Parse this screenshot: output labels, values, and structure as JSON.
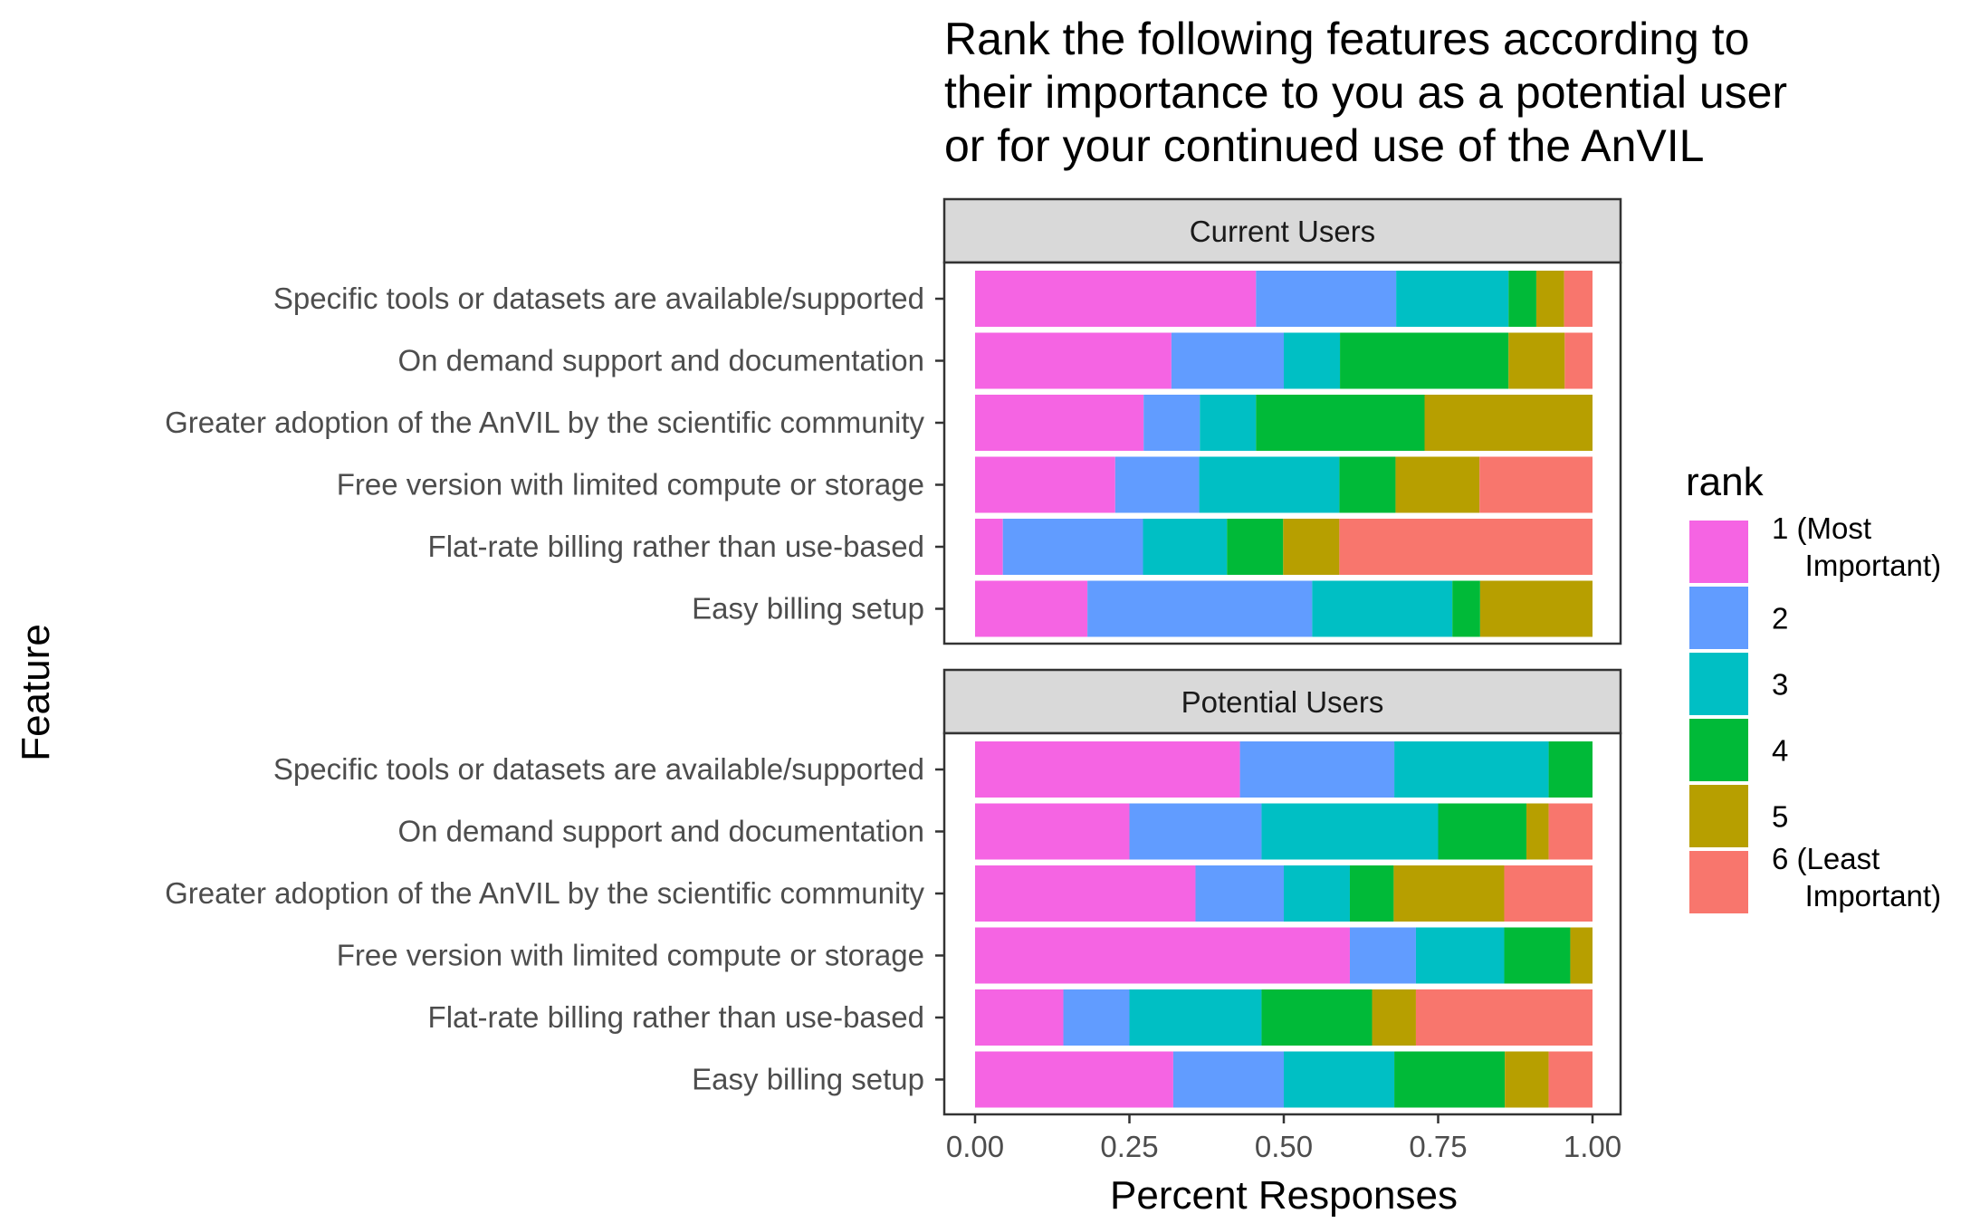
{
  "chart_data": {
    "type": "bar",
    "orientation": "horizontal",
    "stacked": true,
    "title": "Rank the following features according to\ntheir importance to you as a potential user\nor for your continued use of the AnVIL",
    "xlabel": "Percent Responses",
    "ylabel": "Feature",
    "xlim": [
      0,
      1
    ],
    "xticks": [
      "0.00",
      "0.25",
      "0.50",
      "0.75",
      "1.00"
    ],
    "xtick_values": [
      0,
      0.25,
      0.5,
      0.75,
      1.0
    ],
    "legend": {
      "title": "rank",
      "position": "right",
      "entries": [
        "1 (Most\n  Important)",
        "2",
        "3",
        "4",
        "5",
        "6 (Least\n  Important)"
      ]
    },
    "colors": [
      "#F564E3",
      "#619CFF",
      "#00BFC4",
      "#00BA38",
      "#B79F00",
      "#F8766D"
    ],
    "categories": [
      "Specific tools or datasets are available/supported",
      "On demand support and documentation",
      "Greater adoption of the AnVIL by the scientific community",
      "Free version with limited compute or storage",
      "Flat-rate billing rather than use-based",
      "Easy billing setup"
    ],
    "facets": [
      {
        "name": "Current Users",
        "values": [
          [
            0.455,
            0.227,
            0.182,
            0.045,
            0.045,
            0.046
          ],
          [
            0.318,
            0.182,
            0.091,
            0.273,
            0.091,
            0.045
          ],
          [
            0.273,
            0.091,
            0.091,
            0.273,
            0.272,
            0.0
          ],
          [
            0.227,
            0.136,
            0.227,
            0.091,
            0.136,
            0.183
          ],
          [
            0.045,
            0.227,
            0.136,
            0.091,
            0.091,
            0.41
          ],
          [
            0.182,
            0.364,
            0.227,
            0.045,
            0.182,
            0.0
          ]
        ]
      },
      {
        "name": "Potential Users",
        "values": [
          [
            0.429,
            0.25,
            0.25,
            0.071,
            0.0,
            0.0
          ],
          [
            0.25,
            0.214,
            0.286,
            0.143,
            0.036,
            0.071
          ],
          [
            0.357,
            0.143,
            0.107,
            0.071,
            0.179,
            0.143
          ],
          [
            0.607,
            0.107,
            0.143,
            0.107,
            0.036,
            0.0
          ],
          [
            0.143,
            0.107,
            0.214,
            0.179,
            0.071,
            0.286
          ],
          [
            0.321,
            0.179,
            0.179,
            0.179,
            0.071,
            0.071
          ]
        ]
      }
    ]
  }
}
